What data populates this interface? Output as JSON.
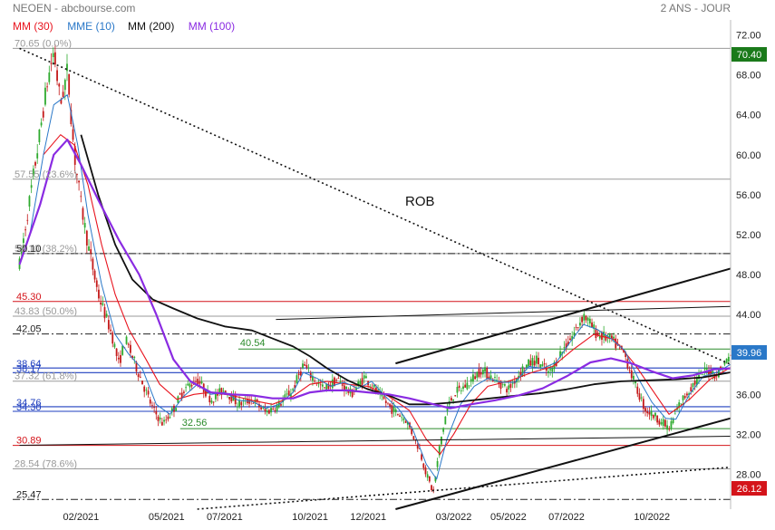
{
  "header": {
    "title": "NEOEN - abcbourse.com",
    "period": "2 ANS - JOUR",
    "legend": [
      {
        "label": "MM (30)",
        "color": "#e8141e"
      },
      {
        "label": "MME (10)",
        "color": "#2a78c8"
      },
      {
        "label": "MM (200)",
        "color": "#111111"
      },
      {
        "label": "MM (100)",
        "color": "#8a2be2"
      }
    ]
  },
  "chart_data": {
    "type": "candlestick",
    "title": "NEOEN - abcbourse.com",
    "period_label": "2 ANS - JOUR",
    "y_range": [
      24.5,
      73.5
    ],
    "y_ticks": [
      "72.00",
      "68.00",
      "64.00",
      "60.00",
      "56.00",
      "52.00",
      "48.00",
      "44.00",
      "40.00",
      "36.00",
      "32.00",
      "28.00"
    ],
    "x_ticks": [
      {
        "label": "02/2021",
        "t": 2021.08
      },
      {
        "label": "05/2021",
        "t": 2021.33
      },
      {
        "label": "07/2021",
        "t": 2021.5
      },
      {
        "label": "10/2021",
        "t": 2021.75
      },
      {
        "label": "12/2021",
        "t": 2021.92
      },
      {
        "label": "03/2022",
        "t": 2022.17
      },
      {
        "label": "05/2022",
        "t": 2022.33
      },
      {
        "label": "07/2022",
        "t": 2022.5
      },
      {
        "label": "10/2022",
        "t": 2022.75
      }
    ],
    "x_range": [
      2020.88,
      2022.98
    ],
    "last_price": "39.96",
    "high_badge": "70.40",
    "low_badge": "26.12",
    "annotation": "ROB",
    "fib_levels": [
      {
        "label": "70.65",
        "pct": "(0.0%)",
        "value": 70.65
      },
      {
        "label": "57.55",
        "pct": "(23.6%)",
        "value": 57.55
      },
      {
        "label": "50.10",
        "pct": "(38.2%)",
        "value": 50.1
      },
      {
        "label": "43.83",
        "pct": "(50.0%)",
        "value": 43.83
      },
      {
        "label": "37.32",
        "pct": "(61.8%)",
        "value": 37.32
      },
      {
        "label": "28.54",
        "pct": "(78.6%)",
        "value": 28.54
      }
    ],
    "red_levels": [
      {
        "label": "45.30",
        "value": 45.3
      },
      {
        "label": "30.89",
        "value": 30.89
      }
    ],
    "dashdot_levels": [
      {
        "label": "50.10",
        "value": 50.1
      },
      {
        "label": "42.05",
        "value": 42.05
      },
      {
        "label": "25.47",
        "value": 25.47
      }
    ],
    "blue_levels": [
      {
        "label": "38.64",
        "value": 38.64
      },
      {
        "label": "38.17",
        "value": 38.17
      },
      {
        "label": "34.76",
        "value": 34.76
      },
      {
        "label": "34.30",
        "value": 34.3
      }
    ],
    "green_levels": [
      {
        "label": "40.54",
        "value": 40.54,
        "t_start": 2021.54
      },
      {
        "label": "32.56",
        "value": 32.56,
        "t_start": 2021.37
      }
    ],
    "trendlines": [
      {
        "name": "downtrend",
        "style": "dotted",
        "p1": [
          2020.9,
          70.65
        ],
        "p2": [
          2022.98,
          39.0
        ]
      },
      {
        "name": "channel-top",
        "style": "solid",
        "p1": [
          2022.0,
          39.1
        ],
        "p2": [
          2022.98,
          48.6
        ]
      },
      {
        "name": "channel-bottom",
        "style": "solid",
        "p1": [
          2022.0,
          24.5
        ],
        "p2": [
          2022.98,
          33.6
        ]
      },
      {
        "name": "support-thin",
        "style": "solid-thin",
        "p1": [
          2020.9,
          30.9
        ],
        "p2": [
          2022.98,
          31.8
        ]
      },
      {
        "name": "resistance-thin",
        "style": "solid-thin",
        "p1": [
          2021.65,
          43.5
        ],
        "p2": [
          2022.98,
          44.8
        ]
      },
      {
        "name": "lower-dotted",
        "style": "dotted",
        "p1": [
          2021.42,
          24.5
        ],
        "p2": [
          2022.98,
          28.7
        ]
      }
    ],
    "price_path": [
      [
        2020.9,
        49.0
      ],
      [
        2020.95,
        60.0
      ],
      [
        2020.98,
        67.0
      ],
      [
        2021.0,
        70.4
      ],
      [
        2021.02,
        65.0
      ],
      [
        2021.04,
        68.5
      ],
      [
        2021.06,
        60.0
      ],
      [
        2021.08,
        55.0
      ],
      [
        2021.1,
        51.0
      ],
      [
        2021.13,
        46.0
      ],
      [
        2021.17,
        42.0
      ],
      [
        2021.19,
        39.0
      ],
      [
        2021.21,
        41.5
      ],
      [
        2021.25,
        38.0
      ],
      [
        2021.29,
        34.5
      ],
      [
        2021.32,
        33.0
      ],
      [
        2021.35,
        34.5
      ],
      [
        2021.38,
        36.5
      ],
      [
        2021.42,
        37.5
      ],
      [
        2021.46,
        35.5
      ],
      [
        2021.5,
        36.5
      ],
      [
        2021.54,
        35.0
      ],
      [
        2021.58,
        35.5
      ],
      [
        2021.62,
        34.2
      ],
      [
        2021.66,
        35.0
      ],
      [
        2021.7,
        36.5
      ],
      [
        2021.73,
        39.0
      ],
      [
        2021.75,
        38.0
      ],
      [
        2021.79,
        36.5
      ],
      [
        2021.83,
        37.5
      ],
      [
        2021.87,
        36.0
      ],
      [
        2021.91,
        37.8
      ],
      [
        2021.95,
        36.0
      ],
      [
        2021.99,
        34.5
      ],
      [
        2022.03,
        33.5
      ],
      [
        2022.07,
        30.5
      ],
      [
        2022.09,
        28.0
      ],
      [
        2022.11,
        26.12
      ],
      [
        2022.13,
        31.0
      ],
      [
        2022.15,
        34.5
      ],
      [
        2022.17,
        36.0
      ],
      [
        2022.21,
        37.0
      ],
      [
        2022.25,
        38.5
      ],
      [
        2022.29,
        37.5
      ],
      [
        2022.33,
        36.5
      ],
      [
        2022.37,
        38.5
      ],
      [
        2022.41,
        39.5
      ],
      [
        2022.45,
        38.0
      ],
      [
        2022.48,
        40.0
      ],
      [
        2022.52,
        42.0
      ],
      [
        2022.55,
        44.0
      ],
      [
        2022.59,
        42.0
      ],
      [
        2022.63,
        41.5
      ],
      [
        2022.67,
        40.0
      ],
      [
        2022.7,
        37.0
      ],
      [
        2022.73,
        34.5
      ],
      [
        2022.77,
        33.5
      ],
      [
        2022.8,
        32.5
      ],
      [
        2022.83,
        35.0
      ],
      [
        2022.87,
        37.0
      ],
      [
        2022.91,
        38.5
      ],
      [
        2022.94,
        38.0
      ],
      [
        2022.98,
        39.96
      ]
    ],
    "moving_averages": [
      {
        "name": "MM (30)",
        "color": "#e8141e",
        "width": 1.1,
        "values": [
          [
            2020.97,
            60.0
          ],
          [
            2021.02,
            62.0
          ],
          [
            2021.06,
            61.0
          ],
          [
            2021.1,
            57.0
          ],
          [
            2021.14,
            51.0
          ],
          [
            2021.18,
            46.0
          ],
          [
            2021.22,
            42.5
          ],
          [
            2021.27,
            39.5
          ],
          [
            2021.31,
            37.0
          ],
          [
            2021.36,
            35.5
          ],
          [
            2021.41,
            36.0
          ],
          [
            2021.46,
            36.2
          ],
          [
            2021.52,
            35.9
          ],
          [
            2021.58,
            35.4
          ],
          [
            2021.64,
            35.0
          ],
          [
            2021.7,
            35.8
          ],
          [
            2021.75,
            37.0
          ],
          [
            2021.8,
            37.3
          ],
          [
            2021.86,
            37.0
          ],
          [
            2021.92,
            36.8
          ],
          [
            2021.98,
            35.8
          ],
          [
            2022.04,
            34.4
          ],
          [
            2022.09,
            31.5
          ],
          [
            2022.13,
            30.0
          ],
          [
            2022.17,
            32.0
          ],
          [
            2022.22,
            35.0
          ],
          [
            2022.27,
            36.8
          ],
          [
            2022.33,
            37.3
          ],
          [
            2022.4,
            38.2
          ],
          [
            2022.46,
            38.8
          ],
          [
            2022.52,
            40.5
          ],
          [
            2022.58,
            42.0
          ],
          [
            2022.64,
            41.5
          ],
          [
            2022.7,
            39.0
          ],
          [
            2022.75,
            36.5
          ],
          [
            2022.8,
            34.0
          ],
          [
            2022.86,
            35.5
          ],
          [
            2022.92,
            37.5
          ],
          [
            2022.98,
            38.7
          ]
        ]
      },
      {
        "name": "MME (10)",
        "color": "#2a78c8",
        "width": 1.0,
        "values": [
          [
            2020.93,
            52.0
          ],
          [
            2020.97,
            60.0
          ],
          [
            2021.0,
            65.0
          ],
          [
            2021.04,
            66.0
          ],
          [
            2021.07,
            61.0
          ],
          [
            2021.1,
            54.0
          ],
          [
            2021.14,
            47.0
          ],
          [
            2021.18,
            42.0
          ],
          [
            2021.22,
            40.0
          ],
          [
            2021.26,
            38.5
          ],
          [
            2021.3,
            35.0
          ],
          [
            2021.34,
            34.0
          ],
          [
            2021.38,
            35.8
          ],
          [
            2021.42,
            37.0
          ],
          [
            2021.46,
            36.0
          ],
          [
            2021.5,
            36.2
          ],
          [
            2021.54,
            35.4
          ],
          [
            2021.58,
            35.3
          ],
          [
            2021.62,
            34.6
          ],
          [
            2021.66,
            35.0
          ],
          [
            2021.7,
            36.2
          ],
          [
            2021.73,
            38.2
          ],
          [
            2021.77,
            37.6
          ],
          [
            2021.81,
            36.8
          ],
          [
            2021.85,
            37.2
          ],
          [
            2021.89,
            36.6
          ],
          [
            2021.93,
            37.3
          ],
          [
            2021.97,
            35.8
          ],
          [
            2022.01,
            34.5
          ],
          [
            2022.05,
            32.5
          ],
          [
            2022.09,
            29.0
          ],
          [
            2022.12,
            27.5
          ],
          [
            2022.15,
            31.5
          ],
          [
            2022.19,
            35.0
          ],
          [
            2022.23,
            36.8
          ],
          [
            2022.27,
            37.6
          ],
          [
            2022.31,
            37.2
          ],
          [
            2022.35,
            37.2
          ],
          [
            2022.39,
            38.8
          ],
          [
            2022.43,
            38.6
          ],
          [
            2022.47,
            39.2
          ],
          [
            2022.51,
            41.2
          ],
          [
            2022.55,
            43.0
          ],
          [
            2022.59,
            42.5
          ],
          [
            2022.63,
            41.6
          ],
          [
            2022.67,
            40.4
          ],
          [
            2022.71,
            37.6
          ],
          [
            2022.75,
            35.2
          ],
          [
            2022.79,
            33.6
          ],
          [
            2022.82,
            33.5
          ],
          [
            2022.86,
            36.0
          ],
          [
            2022.9,
            37.8
          ],
          [
            2022.94,
            38.2
          ],
          [
            2022.98,
            39.0
          ]
        ]
      },
      {
        "name": "MM (200)",
        "color": "#111111",
        "width": 1.8,
        "values": [
          [
            2021.08,
            62.0
          ],
          [
            2021.13,
            56.0
          ],
          [
            2021.18,
            51.0
          ],
          [
            2021.23,
            47.5
          ],
          [
            2021.29,
            45.5
          ],
          [
            2021.35,
            44.6
          ],
          [
            2021.42,
            43.6
          ],
          [
            2021.5,
            42.8
          ],
          [
            2021.58,
            42.4
          ],
          [
            2021.64,
            41.6
          ],
          [
            2021.7,
            40.8
          ],
          [
            2021.75,
            39.8
          ],
          [
            2021.8,
            38.6
          ],
          [
            2021.86,
            37.4
          ],
          [
            2021.92,
            36.5
          ],
          [
            2021.98,
            35.9
          ],
          [
            2022.04,
            35.0
          ],
          [
            2022.1,
            35.0
          ],
          [
            2022.17,
            35.2
          ],
          [
            2022.25,
            35.5
          ],
          [
            2022.33,
            35.8
          ],
          [
            2022.42,
            36.1
          ],
          [
            2022.5,
            36.5
          ],
          [
            2022.58,
            37.0
          ],
          [
            2022.66,
            37.3
          ],
          [
            2022.74,
            37.4
          ],
          [
            2022.82,
            37.5
          ],
          [
            2022.9,
            37.7
          ],
          [
            2022.98,
            38.2
          ]
        ]
      },
      {
        "name": "MM (100)",
        "color": "#8a2be2",
        "width": 2.2,
        "values": [
          [
            2020.9,
            49.0
          ],
          [
            2020.96,
            55.0
          ],
          [
            2021.0,
            60.0
          ],
          [
            2021.04,
            61.5
          ],
          [
            2021.08,
            59.0
          ],
          [
            2021.13,
            55.5
          ],
          [
            2021.19,
            51.5
          ],
          [
            2021.25,
            48.0
          ],
          [
            2021.3,
            44.0
          ],
          [
            2021.35,
            39.5
          ],
          [
            2021.4,
            37.3
          ],
          [
            2021.46,
            36.2
          ],
          [
            2021.52,
            36.0
          ],
          [
            2021.58,
            35.9
          ],
          [
            2021.64,
            35.6
          ],
          [
            2021.7,
            35.6
          ],
          [
            2021.75,
            36.2
          ],
          [
            2021.8,
            36.4
          ],
          [
            2021.86,
            36.4
          ],
          [
            2021.92,
            36.2
          ],
          [
            2021.98,
            36.0
          ],
          [
            2022.04,
            35.6
          ],
          [
            2022.1,
            35.1
          ],
          [
            2022.16,
            34.6
          ],
          [
            2022.22,
            35.0
          ],
          [
            2022.29,
            35.4
          ],
          [
            2022.36,
            35.9
          ],
          [
            2022.43,
            36.6
          ],
          [
            2022.5,
            37.8
          ],
          [
            2022.57,
            39.2
          ],
          [
            2022.63,
            39.6
          ],
          [
            2022.69,
            39.1
          ],
          [
            2022.75,
            38.3
          ],
          [
            2022.81,
            37.6
          ],
          [
            2022.87,
            37.9
          ],
          [
            2022.93,
            38.5
          ],
          [
            2022.98,
            38.6
          ]
        ]
      }
    ]
  }
}
